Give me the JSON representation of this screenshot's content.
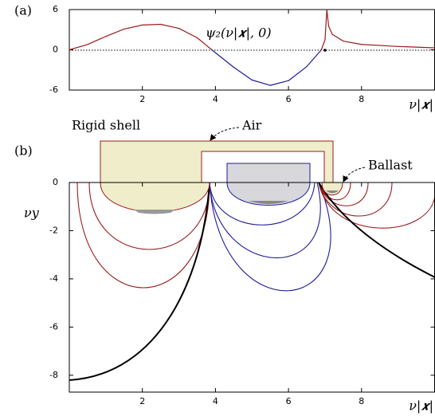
{
  "chart_data": [
    {
      "type": "line",
      "panel_label": "(a)",
      "annotation": "ψ₂(ν|𝒙|, 0)",
      "x_label": "ν|𝒙|",
      "x": [
        0,
        0.5,
        1,
        1.5,
        2,
        2.5,
        3,
        3.5,
        3.9,
        4.5,
        5,
        5.5,
        6,
        6.5,
        6.9,
        7.0,
        7.05,
        7.1,
        7.2,
        7.5,
        8,
        9,
        10
      ],
      "values": [
        0,
        0.8,
        2.0,
        3.1,
        3.7,
        3.8,
        3.2,
        1.8,
        0,
        -2.6,
        -4.5,
        -5.3,
        -4.6,
        -2.5,
        0,
        1.5,
        6,
        3.5,
        2.3,
        1.3,
        0.8,
        0.5,
        0.3
      ],
      "colors": {
        "positive": "#9b1c1c",
        "negative": "#1c1c9b"
      },
      "xlim": [
        0,
        10
      ],
      "ylim": [
        -6,
        6
      ],
      "xticks": [
        2,
        4,
        6,
        8
      ],
      "yticks": [
        -6,
        0,
        6
      ]
    },
    {
      "type": "flow",
      "panel_label": "(b)",
      "x_label": "ν|𝒙|",
      "y_label": "νy",
      "labels": {
        "shell": "Rigid shell",
        "air": "Air",
        "ballast": "Ballast"
      },
      "xlim": [
        0,
        10
      ],
      "ylim": [
        -8.7,
        0
      ],
      "xticks": [
        2,
        4,
        6,
        8
      ],
      "yticks": [
        -8,
        -6,
        -4,
        -2,
        0
      ]
    }
  ]
}
